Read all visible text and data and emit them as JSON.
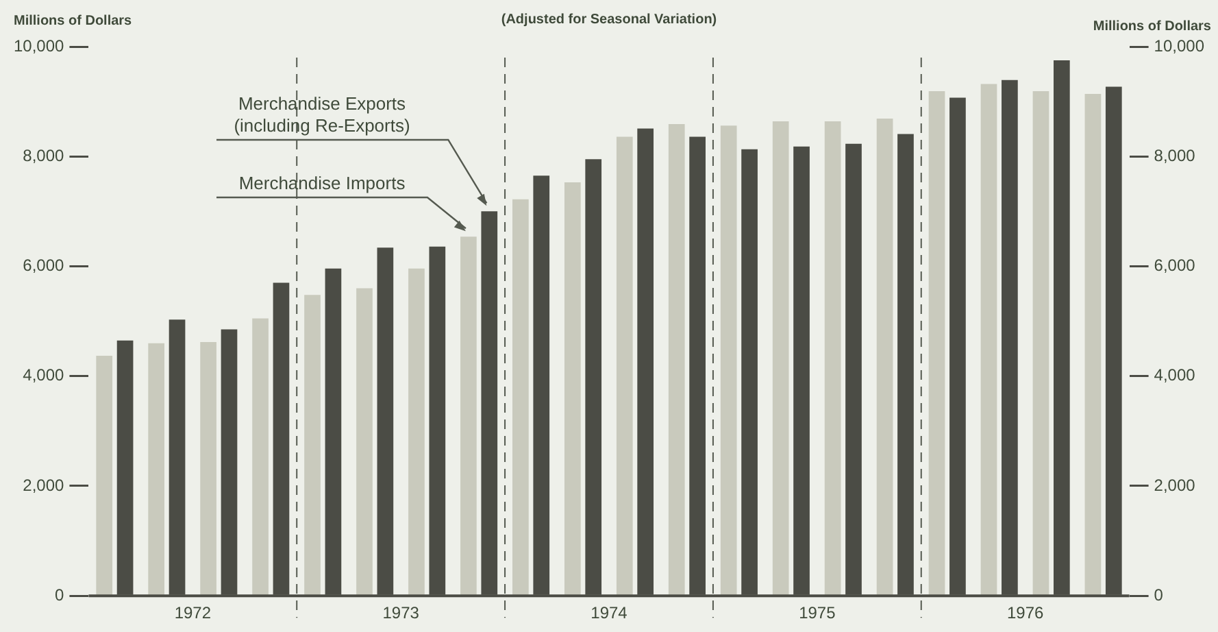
{
  "chart_data": {
    "type": "bar",
    "title": "(Adjusted for Seasonal Variation)",
    "ylabel": "Millions of Dollars",
    "y2label": "Millions of Dollars",
    "xlim": [
      1972,
      1977
    ],
    "xticks": [
      {
        "value": 1972.5,
        "label": "1972"
      },
      {
        "value": 1973.5,
        "label": "1973"
      },
      {
        "value": 1974.5,
        "label": "1974"
      },
      {
        "value": 1975.5,
        "label": "1975"
      },
      {
        "value": 1976.5,
        "label": "1976"
      }
    ],
    "ylim": [
      0,
      10000
    ],
    "yticks": [
      {
        "value": 0,
        "label": "0"
      },
      {
        "value": 2000,
        "label": "2,000"
      },
      {
        "value": 4000,
        "label": "4,000"
      },
      {
        "value": 6000,
        "label": "6,000"
      },
      {
        "value": 8000,
        "label": "8,000"
      },
      {
        "value": 10000,
        "label": "10,000"
      }
    ],
    "y2lim": [
      0,
      10000
    ],
    "y2ticks": [
      {
        "value": 0,
        "label": "0"
      },
      {
        "value": 2000,
        "label": "2,000"
      },
      {
        "value": 4000,
        "label": "4,000"
      },
      {
        "value": 6000,
        "label": "6,000"
      },
      {
        "value": 8000,
        "label": "8,000"
      },
      {
        "value": 10000,
        "label": "10,000"
      }
    ],
    "grid": false,
    "legend": false,
    "series": [
      {
        "name": "Merchandise Imports",
        "color": "#c9cabd",
        "x": [
          1972.125,
          1972.375,
          1972.625,
          1972.875,
          1973.125,
          1973.375,
          1973.625,
          1973.875,
          1974.125,
          1974.375,
          1974.625,
          1974.875,
          1975.125,
          1975.375,
          1975.625,
          1975.875,
          1976.125,
          1976.375,
          1976.625,
          1976.875
        ],
        "values": [
          4370,
          4600,
          4620,
          5050,
          5480,
          5600,
          5960,
          6540,
          7220,
          7530,
          8360,
          8590,
          8560,
          8640,
          8640,
          8690,
          9190,
          9320,
          9190,
          9140
        ]
      },
      {
        "name": "Merchandise Exports (including Re-Exports)",
        "color": "#4b4c45",
        "x": [
          1972.125,
          1972.375,
          1972.625,
          1972.875,
          1973.125,
          1973.375,
          1973.625,
          1973.875,
          1974.125,
          1974.375,
          1974.625,
          1974.875,
          1975.125,
          1975.375,
          1975.625,
          1975.875,
          1976.125,
          1976.375,
          1976.625,
          1976.875
        ],
        "values": [
          4650,
          5030,
          4850,
          5700,
          5960,
          6340,
          6360,
          7000,
          7650,
          7950,
          8510,
          8360,
          8130,
          8180,
          8230,
          8410,
          9070,
          9390,
          9750,
          9270
        ]
      }
    ],
    "ref_lines": [
      {
        "axis": "x",
        "value": 1973,
        "line_style": "dashed"
      },
      {
        "axis": "x",
        "value": 1974,
        "line_style": "dashed"
      },
      {
        "axis": "x",
        "value": 1975,
        "line_style": "dashed"
      },
      {
        "axis": "x",
        "value": 1976,
        "line_style": "dashed"
      }
    ]
  }
}
